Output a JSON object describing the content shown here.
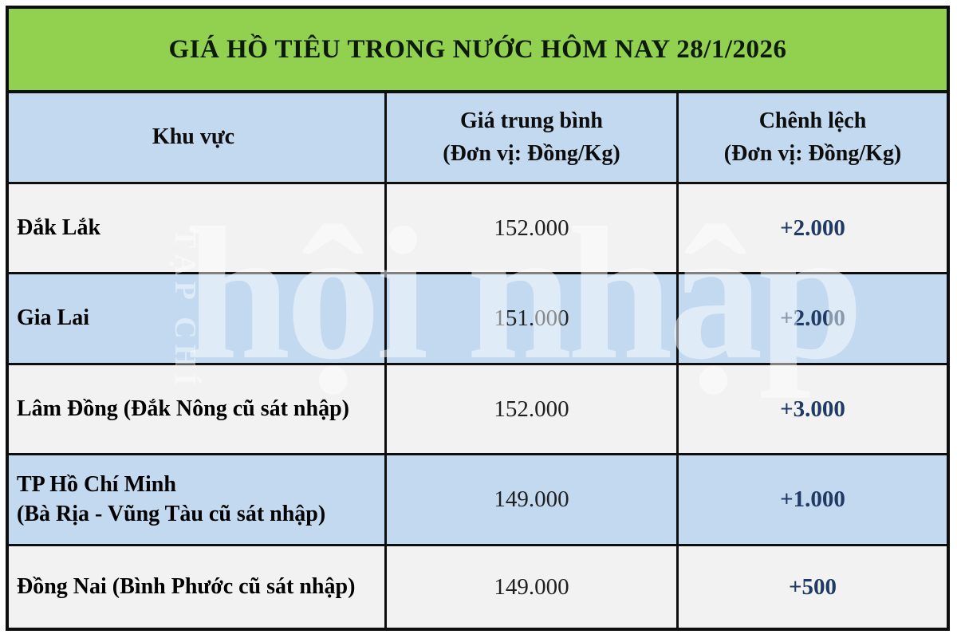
{
  "title": "GIÁ HỒ TIÊU TRONG NƯỚC HÔM NAY 28/1/2026",
  "colors": {
    "banner_green": "#92d050",
    "row_blue": "#c2d9f0",
    "row_offwhite": "#f2f2f2",
    "border_black": "#0e0e0e",
    "change_navy": "#1f3a63"
  },
  "table": {
    "columns": [
      {
        "label": "Khu vực",
        "sublabel": ""
      },
      {
        "label": "Giá trung bình",
        "sublabel": "(Đơn vị: Đồng/Kg)"
      },
      {
        "label": "Chênh lệch",
        "sublabel": "(Đơn vị: Đồng/Kg)"
      }
    ],
    "rows": [
      {
        "region": "Đắk Lắk",
        "region_line2": "",
        "price": "152.000",
        "change": "+2.000"
      },
      {
        "region": "Gia Lai",
        "region_line2": "",
        "price": "151.000",
        "change": "+2.000"
      },
      {
        "region": "Lâm Đồng (Đắk Nông cũ sát nhập)",
        "region_line2": "",
        "price": "152.000",
        "change": "+3.000"
      },
      {
        "region": "TP Hồ Chí Minh",
        "region_line2": "(Bà Rịa - Vũng Tàu cũ sát nhập)",
        "price": "149.000",
        "change": "+1.000"
      },
      {
        "region": "Đồng Nai (Bình Phước cũ sát nhập)",
        "region_line2": "",
        "price": "149.000",
        "change": "+500"
      }
    ]
  },
  "watermark": {
    "vertical_text": "TẠP CHÍ",
    "main_text": "hội nhập"
  },
  "chart_data": {
    "type": "table",
    "title": "GIÁ HỒ TIÊU TRONG NƯỚC HÔM NAY 28/1/2026",
    "columns": [
      "Khu vực",
      "Giá trung bình (Đơn vị: Đồng/Kg)",
      "Chênh lệch (Đơn vị: Đồng/Kg)"
    ],
    "rows": [
      [
        "Đắk Lắk",
        152000,
        2000
      ],
      [
        "Gia Lai",
        151000,
        2000
      ],
      [
        "Lâm Đồng (Đắk Nông cũ sát nhập)",
        152000,
        3000
      ],
      [
        "TP Hồ Chí Minh (Bà Rịa - Vũng Tàu cũ sát nhập)",
        149000,
        1000
      ],
      [
        "Đồng Nai (Bình Phước cũ sát nhập)",
        149000,
        500
      ]
    ],
    "unit": "Đồng/Kg",
    "date": "28/1/2026"
  }
}
